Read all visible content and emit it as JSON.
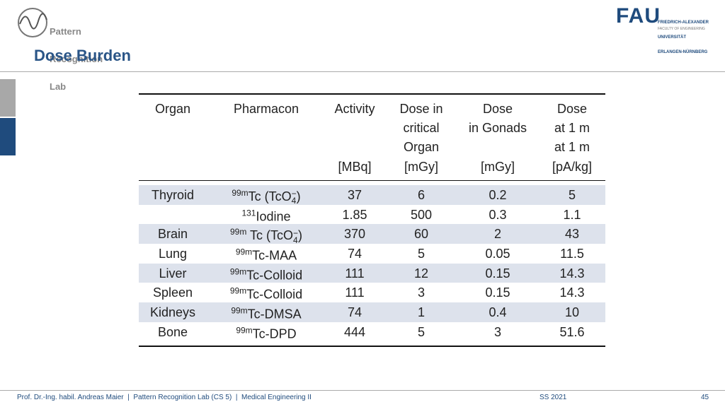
{
  "header": {
    "lab_logo": [
      "Pattern",
      "Recognition",
      "Lab"
    ],
    "university_logo": "FAU",
    "university_name": [
      "FRIEDRICH-ALEXANDER",
      "UNIVERSITÄT",
      "ERLANGEN-NÜRNBERG"
    ],
    "faculty": "FACULTY OF ENGINEERING"
  },
  "title": "Dose Burden",
  "table": {
    "columns": [
      {
        "lines": [
          "Organ"
        ]
      },
      {
        "lines": [
          "Pharmacon"
        ]
      },
      {
        "lines": [
          "Activity"
        ],
        "unit": "[MBq]"
      },
      {
        "lines": [
          "Dose in",
          "critical",
          "Organ"
        ],
        "unit": "[mGy]"
      },
      {
        "lines": [
          "Dose",
          "in Gonads"
        ],
        "unit": "[mGy]"
      },
      {
        "lines": [
          "Dose",
          "at 1 m",
          "at 1 m"
        ],
        "unit": "[pA/kg]"
      }
    ],
    "rows": [
      {
        "organ": "Thyroid",
        "pharmacon": {
          "isotope": "99m",
          "name": "Tc (TcO",
          "sub": "4",
          "sup": "−",
          "tail": ")"
        },
        "values": [
          "37",
          "6",
          "0.2",
          "5"
        ]
      },
      {
        "organ": null,
        "pharmacon": {
          "isotope": "131",
          "name": "Iodine"
        },
        "values": [
          "1.85",
          "500",
          "0.3",
          "1.1"
        ]
      },
      {
        "organ": "Brain",
        "pharmacon": {
          "isotope": "99m",
          "name": " Tc (TcO",
          "sub": "4",
          "sup": "−",
          "tail": ")"
        },
        "values": [
          "370",
          "60",
          "2",
          "43"
        ]
      },
      {
        "organ": "Lung",
        "pharmacon": {
          "isotope": "99m",
          "name": "Tc-MAA"
        },
        "values": [
          "74",
          "5",
          "0.05",
          "11.5"
        ]
      },
      {
        "organ": "Liver",
        "pharmacon": {
          "isotope": "99m",
          "name": "Tc-Colloid"
        },
        "values": [
          "111",
          "12",
          "0.15",
          "14.3"
        ]
      },
      {
        "organ": "Spleen",
        "pharmacon": {
          "isotope": "99m",
          "name": "Tc-Colloid"
        },
        "values": [
          "111",
          "3",
          "0.15",
          "14.3"
        ]
      },
      {
        "organ": "Kidneys",
        "pharmacon": {
          "isotope": "99m",
          "name": "Tc-DMSA"
        },
        "values": [
          "74",
          "1",
          "0.4",
          "10"
        ]
      },
      {
        "organ": "Bone",
        "pharmacon": {
          "isotope": "99m",
          "name": "Tc-DPD"
        },
        "values": [
          "444",
          "5",
          "3",
          "51.6"
        ]
      }
    ]
  },
  "footer": {
    "text": "Prof. Dr.-Ing. habil. Andreas Maier  |  Pattern Recognition Lab (CS 5)  |  Medical Engineering II",
    "term": "SS 2021",
    "page": "45"
  }
}
